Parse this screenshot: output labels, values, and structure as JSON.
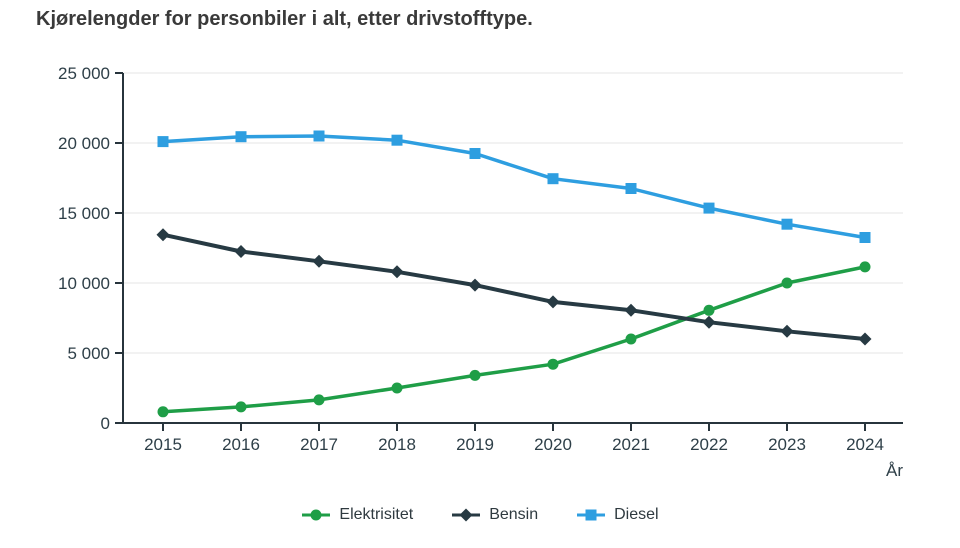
{
  "page": {
    "title": "Kjørelengder for personbiler i alt, etter drivstofftype."
  },
  "chart_data": {
    "type": "line",
    "title": "Kjørelengder for personbiler i alt, etter drivstofftype.",
    "x": [
      2015,
      2016,
      2017,
      2018,
      2019,
      2020,
      2021,
      2022,
      2023,
      2024
    ],
    "xlabel": "År",
    "ylabel": "",
    "ylim": [
      0,
      25000
    ],
    "ytick_step": 5000,
    "ytick_labels": [
      "0",
      "5 000",
      "10 000",
      "15 000",
      "20 000",
      "25 000"
    ],
    "grid": "horizontal",
    "legend_position": "bottom-center",
    "series": [
      {
        "name": "Elektrisitet",
        "marker": "circle",
        "color": "#1f9e47",
        "values": [
          800,
          1150,
          1650,
          2500,
          3400,
          4200,
          6000,
          8050,
          10000,
          11150
        ]
      },
      {
        "name": "Bensin",
        "marker": "diamond",
        "color": "#273a43",
        "values": [
          13450,
          12250,
          11550,
          10800,
          9850,
          8650,
          8050,
          7200,
          6550,
          6000
        ]
      },
      {
        "name": "Diesel",
        "marker": "square",
        "color": "#2e9ee0",
        "values": [
          20100,
          20450,
          20500,
          20200,
          19250,
          17450,
          16750,
          15350,
          14200,
          13250
        ]
      }
    ],
    "colors": {
      "axis": "#27343c",
      "grid": "#e6e6e6",
      "tick_label": "#2e3f48",
      "title": "#3a3a3a",
      "background": "#ffffff"
    }
  }
}
